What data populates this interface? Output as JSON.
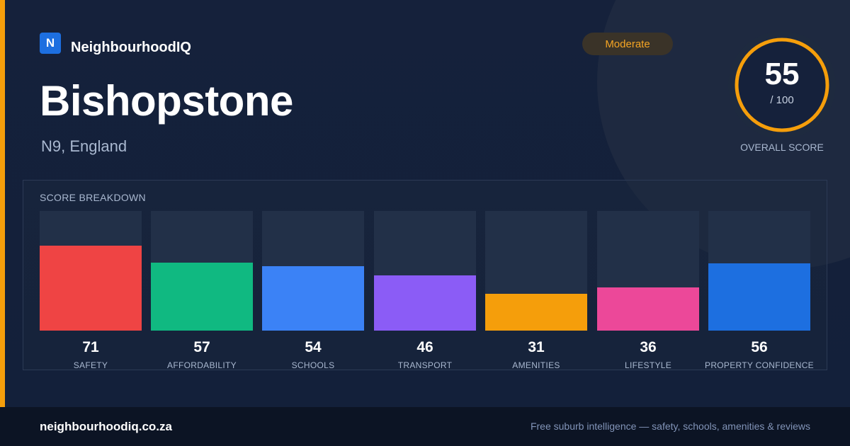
{
  "brand": {
    "logo_letter": "N",
    "name": "NeighbourhoodIQ",
    "logo_color": "#1d6fe0"
  },
  "location": {
    "name": "Bishopstone",
    "region": "N9, England"
  },
  "rating": {
    "label": "Moderate",
    "color": "#f5a524"
  },
  "overall": {
    "score": "55",
    "out_of": "/ 100",
    "caption": "OVERALL SCORE",
    "fraction": 0.55,
    "ring_color": "#f59e0b"
  },
  "breakdown": {
    "title": "SCORE BREAKDOWN",
    "items": [
      {
        "label": "SAFETY",
        "value": "71",
        "score": 71,
        "color": "#ef4444"
      },
      {
        "label": "AFFORDABILITY",
        "value": "57",
        "score": 57,
        "color": "#10b981"
      },
      {
        "label": "SCHOOLS",
        "value": "54",
        "score": 54,
        "color": "#3b82f6"
      },
      {
        "label": "TRANSPORT",
        "value": "46",
        "score": 46,
        "color": "#8b5cf6"
      },
      {
        "label": "AMENITIES",
        "value": "31",
        "score": 31,
        "color": "#f59e0b"
      },
      {
        "label": "LIFESTYLE",
        "value": "36",
        "score": 36,
        "color": "#ec4899"
      },
      {
        "label": "PROPERTY CONFIDENCE",
        "value": "56",
        "score": 56,
        "color": "#1d6fe0"
      }
    ]
  },
  "footer": {
    "url": "neighbourhoodiq.co.za",
    "tagline": "Free suburb intelligence — safety, schools, amenities & reviews"
  },
  "colors": {
    "accent": "#f59e0b",
    "background": "#14213d",
    "footer": "#0c1424"
  }
}
